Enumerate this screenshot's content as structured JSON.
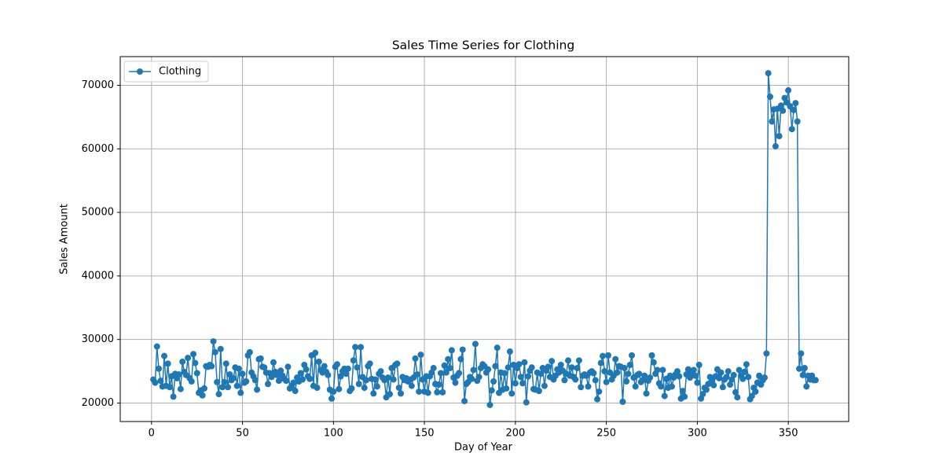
{
  "chart_data": {
    "type": "line",
    "title": "Sales Time Series for Clothing",
    "x_label": "Day of Year",
    "y_label": "Sales Amount",
    "x": [
      1,
      2,
      3,
      4,
      5,
      6,
      7,
      8,
      9,
      10,
      11,
      12,
      13,
      14,
      15,
      16,
      17,
      18,
      19,
      20,
      21,
      22,
      23,
      24,
      25,
      26,
      27,
      28,
      29,
      30,
      31,
      32,
      33,
      34,
      35,
      36,
      37,
      38,
      39,
      40,
      41,
      42,
      43,
      44,
      45,
      46,
      47,
      48,
      49,
      50,
      51,
      52,
      53,
      54,
      55,
      56,
      57,
      58,
      59,
      60,
      61,
      62,
      63,
      64,
      65,
      66,
      67,
      68,
      69,
      70,
      71,
      72,
      73,
      74,
      75,
      76,
      77,
      78,
      79,
      80,
      81,
      82,
      83,
      84,
      85,
      86,
      87,
      88,
      89,
      90,
      91,
      92,
      93,
      94,
      95,
      96,
      97,
      98,
      99,
      100,
      101,
      102,
      103,
      104,
      105,
      106,
      107,
      108,
      109,
      110,
      111,
      112,
      113,
      114,
      115,
      116,
      117,
      118,
      119,
      120,
      121,
      122,
      123,
      124,
      125,
      126,
      127,
      128,
      129,
      130,
      131,
      132,
      133,
      134,
      135,
      136,
      137,
      138,
      139,
      140,
      141,
      142,
      143,
      144,
      145,
      146,
      147,
      148,
      149,
      150,
      151,
      152,
      153,
      154,
      155,
      156,
      157,
      158,
      159,
      160,
      161,
      162,
      163,
      164,
      165,
      166,
      167,
      168,
      169,
      170,
      171,
      172,
      173,
      174,
      175,
      176,
      177,
      178,
      179,
      180,
      181,
      182,
      183,
      184,
      185,
      186,
      187,
      188,
      189,
      190,
      191,
      192,
      193,
      194,
      195,
      196,
      197,
      198,
      199,
      200,
      201,
      202,
      203,
      204,
      205,
      206,
      207,
      208,
      209,
      210,
      211,
      212,
      213,
      214,
      215,
      216,
      217,
      218,
      219,
      220,
      221,
      222,
      223,
      224,
      225,
      226,
      227,
      228,
      229,
      230,
      231,
      232,
      233,
      234,
      235,
      236,
      237,
      238,
      239,
      240,
      241,
      242,
      243,
      244,
      245,
      246,
      247,
      248,
      249,
      250,
      251,
      252,
      253,
      254,
      255,
      256,
      257,
      258,
      259,
      260,
      261,
      262,
      263,
      264,
      265,
      266,
      267,
      268,
      269,
      270,
      271,
      272,
      273,
      274,
      275,
      276,
      277,
      278,
      279,
      280,
      281,
      282,
      283,
      284,
      285,
      286,
      287,
      288,
      289,
      290,
      291,
      292,
      293,
      294,
      295,
      296,
      297,
      298,
      299,
      300,
      301,
      302,
      303,
      304,
      305,
      306,
      307,
      308,
      309,
      310,
      311,
      312,
      313,
      314,
      315,
      316,
      317,
      318,
      319,
      320,
      321,
      322,
      323,
      324,
      325,
      326,
      327,
      328,
      329,
      330,
      331,
      332,
      333,
      334,
      335,
      336,
      337,
      338,
      339,
      340,
      341,
      342,
      343,
      344,
      345,
      346,
      347,
      348,
      349,
      350,
      351,
      352,
      353,
      354,
      355,
      356,
      357,
      358,
      359,
      360,
      361,
      362,
      363,
      364,
      365
    ],
    "series": [
      {
        "name": "Clothing",
        "color": "#1f77b4",
        "values": [
          23700,
          23200,
          28900,
          25400,
          23500,
          22600,
          27400,
          22700,
          26200,
          22500,
          24200,
          21000,
          24600,
          23900,
          24500,
          22200,
          26500,
          24900,
          24400,
          27100,
          23900,
          23400,
          27700,
          26300,
          24700,
          21600,
          22000,
          21200,
          22300,
          25800,
          25700,
          26000,
          25800,
          29700,
          28000,
          23300,
          21400,
          28500,
          22500,
          23300,
          26200,
          22500,
          24500,
          23600,
          23900,
          25600,
          22700,
          25400,
          21600,
          24600,
          23200,
          23400,
          27500,
          28000,
          24800,
          24200,
          23600,
          22100,
          26900,
          27000,
          25700,
          25600,
          24800,
          23000,
          24700,
          24100,
          26400,
          24900,
          24400,
          23500,
          25100,
          24300,
          23800,
          23500,
          25700,
          22300,
          22700,
          23200,
          21900,
          24000,
          23400,
          24700,
          23700,
          26000,
          25300,
          24200,
          23800,
          27500,
          22700,
          27900,
          22400,
          26500,
          25200,
          24800,
          25800,
          24900,
          24400,
          22100,
          20700,
          21800,
          25700,
          26100,
          22200,
          24200,
          25000,
          25400,
          24600,
          25400,
          21900,
          22300,
          26700,
          28800,
          25600,
          23000,
          28800,
          24100,
          22400,
          23600,
          25800,
          26200,
          23800,
          21500,
          23700,
          22600,
          24600,
          25000,
          24000,
          23600,
          20900,
          24000,
          21400,
          25500,
          23700,
          26000,
          26200,
          22400,
          21500,
          24100,
          23600,
          23900,
          23400,
          23700,
          22700,
          24000,
          27000,
          24500,
          21800,
          27600,
          23700,
          21800,
          24200,
          21600,
          24200,
          24800,
          25500,
          23000,
          21700,
          22900,
          24700,
          21700,
          25900,
          24800,
          26900,
          25500,
          28300,
          24000,
          23200,
          24300,
          24700,
          26900,
          28400,
          20300,
          23000,
          23300,
          24100,
          23800,
          25200,
          29300,
          23500,
          24100,
          25500,
          26100,
          25800,
          24800,
          25300,
          19700,
          22000,
          23400,
          25800,
          28700,
          21600,
          24800,
          22100,
          24700,
          22300,
          25600,
          28100,
          21500,
          26000,
          23100,
          25500,
          26100,
          24100,
          23100,
          26400,
          20100,
          24200,
          25100,
          25600,
          22200,
          22100,
          24800,
          21900,
          24600,
          25500,
          22700,
          25100,
          25700,
          24100,
          26600,
          23700,
          24300,
          25300,
          24800,
          26000,
          25100,
          23600,
          24600,
          26700,
          24300,
          25600,
          24100,
          23700,
          25500,
          26700,
          22500,
          24300,
          24500,
          24300,
          22600,
          24800,
          25000,
          24700,
          23600,
          20600,
          21800,
          26300,
          27400,
          25000,
          23300,
          27500,
          24800,
          23700,
          24300,
          26900,
          24800,
          25800,
          25700,
          20200,
          25500,
          23400,
          24600,
          26000,
          27500,
          24000,
          22600,
          24400,
          24600,
          23300,
          23600,
          24300,
          21500,
          23500,
          24000,
          27500,
          26400,
          24600,
          25200,
          23100,
          22600,
          25200,
          21100,
          23800,
          22400,
          24300,
          22600,
          24000,
          24500,
          25000,
          24200,
          20700,
          21900,
          21000,
          24500,
          25300,
          24000,
          24600,
          25200,
          24300,
          23200,
          26000,
          20700,
          21400,
          22400,
          22100,
          23000,
          24100,
          23500,
          22800,
          24200,
          25300,
          23900,
          24800,
          22500,
          23700,
          24100,
          25000,
          22900,
          23700,
          24400,
          21700,
          20900,
          25200,
          24300,
          23800,
          24900,
          26100,
          24100,
          20600,
          21100,
          22400,
          21800,
          23200,
          24300,
          22900,
          23600,
          24000,
          27800,
          71900,
          68200,
          64300,
          66200,
          60400,
          66300,
          62000,
          66800,
          66000,
          68000,
          67300,
          69200,
          66700,
          63100,
          66100,
          67200,
          64300,
          25400,
          27800,
          24400,
          25500,
          22600,
          24300,
          23700,
          24300,
          23600,
          23600
        ]
      }
    ],
    "xlim": [
      -17.2,
      383.2
    ],
    "ylim": [
      17090,
      74510
    ],
    "xticks": [
      0,
      50,
      100,
      150,
      200,
      250,
      300,
      350
    ],
    "yticks": [
      20000,
      30000,
      40000,
      50000,
      60000,
      70000
    ],
    "grid": true,
    "legend": "upper left",
    "markers": true
  }
}
